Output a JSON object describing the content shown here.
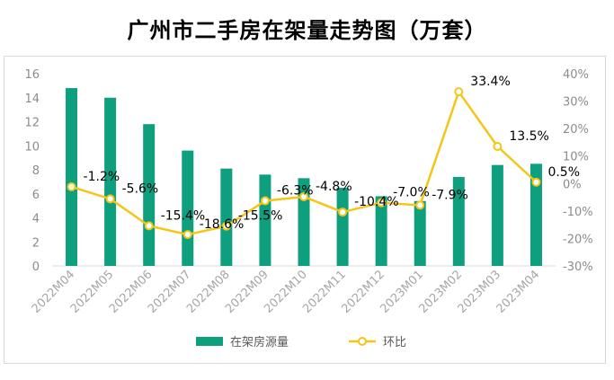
{
  "title": "广州市二手房在架量走势图（万套）",
  "chart_data": {
    "type": "bar+line",
    "categories": [
      "2022M04",
      "2022M05",
      "2022M06",
      "2022M07",
      "2022M08",
      "2022M09",
      "2022M10",
      "2022M11",
      "2022M12",
      "2023M01",
      "2023M02",
      "2023M03",
      "2023M04"
    ],
    "series": [
      {
        "name": "在架房源量",
        "type": "bar",
        "axis": "left",
        "color": "#0e9f7e",
        "values": [
          14.8,
          14.0,
          11.8,
          9.6,
          8.1,
          7.6,
          7.3,
          6.5,
          5.8,
          5.4,
          7.4,
          8.4,
          8.5
        ]
      },
      {
        "name": "环比",
        "type": "line",
        "axis": "right",
        "color": "#f5c518",
        "values": [
          -1.2,
          -5.6,
          -15.4,
          -18.6,
          -15.5,
          -6.3,
          -4.8,
          -10.4,
          -7.0,
          -7.9,
          33.4,
          13.5,
          0.5
        ],
        "labels": [
          "-1.2%",
          "-5.6%",
          "-15.4%",
          "-18.6%",
          "-15.5%",
          "-6.3%",
          "-4.8%",
          "-10.4%",
          "-7.0%",
          "-7.9%",
          "33.4%",
          "13.5%",
          "0.5%"
        ]
      }
    ],
    "left_axis": {
      "min": 0,
      "max": 16,
      "ticks": [
        "0",
        "2",
        "4",
        "6",
        "8",
        "10",
        "12",
        "14",
        "16"
      ]
    },
    "right_axis": {
      "min": -30,
      "max": 40,
      "ticks": [
        "-30%",
        "-20%",
        "-10%",
        "0%",
        "10%",
        "20%",
        "30%",
        "40%"
      ]
    },
    "grid": false,
    "legend": {
      "position": "bottom",
      "entries": [
        "在架房源量",
        "环比"
      ]
    }
  }
}
